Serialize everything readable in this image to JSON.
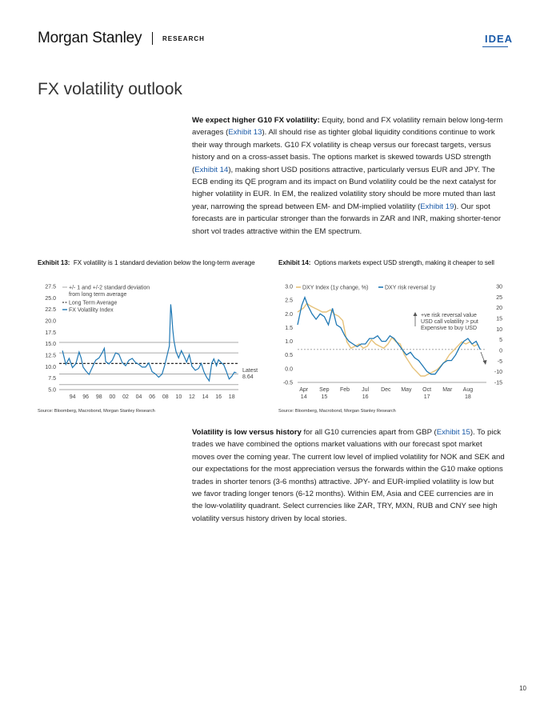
{
  "header": {
    "brand": "Morgan Stanley",
    "research": "RESEARCH",
    "tag": "IDEA"
  },
  "title": "FX volatility outlook",
  "para1": {
    "lead": "We expect higher G10 FX volatility:",
    "t1": " Equity, bond and FX volatility remain below long-term averages (",
    "link1": "Exhibit 13",
    "t2": "). All should rise as tighter global liquidity conditions continue to work their way through markets. G10 FX volatility is cheap versus our forecast targets, versus history and on a cross-asset basis. The options market is skewed towards USD strength (",
    "link2": "Exhibit 14",
    "t3": "), making short USD positions attractive, particularly versus EUR and JPY. The ECB ending its QE program and its impact on Bund volatility could be the next catalyst for higher volatility in EUR. In EM, the realized volatility story should be more muted than last year, narrowing the spread between EM- and DM-implied volatility (",
    "link3": "Exhibit 19",
    "t4": "). Our spot forecasts are in particular stronger than the forwards in ZAR and INR, making shorter-tenor short vol trades attractive within the EM spectrum."
  },
  "exhibit13": {
    "label": "Exhibit 13:",
    "title": "FX volatility is 1 standard deviation below the long-term average",
    "source": "Source: Bloomberg, Macrobond, Morgan Stanley Research"
  },
  "exhibit14": {
    "label": "Exhibit 14:",
    "title": "Options markets expect USD strength, making it cheaper to sell",
    "source": "Source: Bloomberg, Macrobond, Morgan Stanley Research"
  },
  "chart_data": [
    {
      "type": "line",
      "ylim": [
        5.0,
        27.5
      ],
      "y_ticks": [
        "27.5",
        "25.0",
        "22.5",
        "20.0",
        "17.5",
        "15.0",
        "12.5",
        "10.0",
        "7.5",
        "5.0"
      ],
      "x_ticks": [
        "94",
        "96",
        "98",
        "00",
        "02",
        "04",
        "06",
        "08",
        "10",
        "12",
        "14",
        "16",
        "18"
      ],
      "xlim": [
        1992.0,
        2019.0
      ],
      "legend": [
        "+/- 1 and +/-2 standard deviation from long term average",
        "Long Term Average",
        "FX Volatility Index"
      ],
      "legend_placement": "top-left",
      "annotation": {
        "text1": "Latest",
        "text2": "8.64"
      },
      "bands": [
        15.3,
        13.0,
        8.4,
        6.1
      ],
      "long_term_average": 10.7,
      "series": [
        {
          "name": "FX Volatility Index",
          "color": "#1f78b4",
          "x": [
            1992.5,
            1993.0,
            1993.5,
            1994.0,
            1994.5,
            1995.0,
            1995.3,
            1995.6,
            1996.0,
            1996.5,
            1997.0,
            1997.5,
            1998.0,
            1998.5,
            1998.8,
            1999.0,
            1999.5,
            2000.0,
            2000.5,
            2001.0,
            2001.5,
            2002.0,
            2002.5,
            2003.0,
            2003.5,
            2004.0,
            2004.5,
            2005.0,
            2005.5,
            2006.0,
            2006.5,
            2007.0,
            2007.5,
            2007.9,
            2008.3,
            2008.6,
            2008.8,
            2008.95,
            2009.1,
            2009.3,
            2009.6,
            2010.0,
            2010.4,
            2010.8,
            2011.2,
            2011.6,
            2012.0,
            2012.5,
            2013.0,
            2013.4,
            2013.8,
            2014.2,
            2014.6,
            2015.0,
            2015.3,
            2015.7,
            2016.0,
            2016.4,
            2016.8,
            2017.2,
            2017.6,
            2018.0,
            2018.4,
            2018.7
          ],
          "values": [
            13.5,
            10.5,
            11.8,
            9.8,
            10.6,
            13.2,
            11.9,
            9.9,
            9.1,
            8.3,
            9.9,
            11.4,
            11.9,
            13.1,
            14.0,
            11.1,
            10.6,
            11.4,
            13.0,
            12.7,
            10.9,
            10.2,
            11.4,
            11.8,
            10.9,
            10.5,
            9.9,
            9.9,
            10.8,
            8.9,
            8.4,
            7.7,
            8.4,
            10.3,
            12.7,
            14.5,
            23.6,
            21.5,
            18.2,
            15.6,
            13.3,
            11.9,
            13.5,
            12.3,
            11.0,
            12.6,
            10.1,
            9.2,
            9.6,
            10.7,
            8.9,
            7.7,
            6.9,
            10.8,
            11.7,
            10.2,
            11.5,
            10.9,
            10.4,
            8.9,
            7.3,
            7.9,
            8.8,
            8.64
          ]
        }
      ]
    },
    {
      "type": "line",
      "ylim_left": [
        -0.5,
        3.0
      ],
      "ylim_right": [
        -15,
        30
      ],
      "y_ticks_left": [
        "3.0",
        "2.5",
        "2.0",
        "1.5",
        "1.0",
        "0.5",
        "0.0",
        "-0.5"
      ],
      "y_ticks_right": [
        "30",
        "25",
        "20",
        "15",
        "10",
        "5",
        "0",
        "-5",
        "-10",
        "-15"
      ],
      "x_ticks": [
        {
          "m": "Apr",
          "y": "14"
        },
        {
          "m": "Sep",
          "y": "15"
        },
        {
          "m": "Feb",
          "y": ""
        },
        {
          "m": "Jul",
          "y": "16"
        },
        {
          "m": "Dec",
          "y": ""
        },
        {
          "m": "May",
          "y": ""
        },
        {
          "m": "Oct",
          "y": "17"
        },
        {
          "m": "Mar",
          "y": ""
        },
        {
          "m": "Aug",
          "y": "18"
        }
      ],
      "x_tick_pos": [
        0,
        1,
        2,
        3,
        4,
        5,
        6,
        7,
        8
      ],
      "xlim": [
        -0.3,
        8.9
      ],
      "legend": [
        "DXY Index (1y change, %)",
        "DXY risk reversal 1y"
      ],
      "legend_placement": "top-left",
      "annotation": {
        "line1": "+ve risk reversal value",
        "line2": "USD call volatility > put",
        "line3": "Expensive to buy USD"
      },
      "series": [
        {
          "name": "DXY Index (1y change, %)",
          "axis": "right",
          "color": "#e6c27a",
          "x": [
            -0.3,
            0.0,
            0.15,
            0.3,
            0.5,
            0.7,
            0.9,
            1.1,
            1.3,
            1.5,
            1.7,
            1.9,
            2.1,
            2.3,
            2.5,
            2.7,
            2.9,
            3.1,
            3.3,
            3.5,
            3.7,
            3.9,
            4.1,
            4.3,
            4.5,
            4.7,
            4.9,
            5.1,
            5.3,
            5.5,
            5.7,
            5.9,
            6.1,
            6.3,
            6.5,
            6.7,
            6.9,
            7.1,
            7.3,
            7.5,
            7.7,
            7.9,
            8.1,
            8.3,
            8.5
          ],
          "values": [
            18,
            20,
            22,
            21,
            20,
            19,
            18,
            18,
            19,
            17,
            16,
            14,
            4,
            1,
            2,
            3,
            1,
            2,
            5,
            3,
            2,
            1,
            3,
            6,
            4,
            3,
            -2,
            -5,
            -8,
            -10,
            -12,
            -12,
            -11,
            -10,
            -9,
            -7,
            -5,
            -2,
            0,
            2,
            4,
            3,
            4,
            2,
            3
          ]
        },
        {
          "name": "DXY risk reversal 1y",
          "axis": "left",
          "color": "#1f78b4",
          "x": [
            -0.3,
            -0.1,
            0.05,
            0.2,
            0.4,
            0.6,
            0.8,
            1.0,
            1.2,
            1.4,
            1.6,
            1.8,
            2.0,
            2.2,
            2.4,
            2.6,
            2.8,
            3.0,
            3.2,
            3.4,
            3.6,
            3.8,
            4.0,
            4.2,
            4.4,
            4.6,
            4.8,
            5.0,
            5.2,
            5.4,
            5.6,
            5.8,
            6.0,
            6.2,
            6.4,
            6.6,
            6.8,
            7.0,
            7.2,
            7.4,
            7.6,
            7.8,
            8.0,
            8.2,
            8.4,
            8.6
          ],
          "values": [
            1.6,
            2.3,
            2.6,
            2.3,
            2.0,
            1.8,
            2.0,
            1.9,
            1.6,
            2.2,
            1.6,
            1.5,
            1.2,
            1.0,
            0.9,
            0.8,
            0.9,
            0.9,
            1.1,
            1.1,
            1.2,
            1.0,
            1.0,
            1.2,
            1.1,
            0.9,
            0.7,
            0.5,
            0.6,
            0.4,
            0.3,
            0.1,
            -0.1,
            -0.2,
            -0.2,
            0.0,
            0.2,
            0.3,
            0.3,
            0.5,
            0.8,
            1.0,
            1.1,
            0.9,
            1.0,
            0.7
          ]
        }
      ],
      "reference_line_left": 0.7
    }
  ],
  "para2": {
    "lead": "Volatility is low versus history",
    "t1": " for all G10 currencies apart from GBP (",
    "link1": "Exhibit 15",
    "t2": "). To pick trades we have combined the options market valuations with our forecast spot market moves over the coming year. The current low level of implied volatility for NOK and SEK and our expectations for the most appreciation versus the forwards within the G10 make options trades in shorter tenors (3-6 months) attractive. JPY- and EUR-implied volatility is low but we favor trading longer tenors (6-12 months). Within EM, Asia and CEE currencies are in the low-volatility quadrant. Select currencies like ZAR, TRY, MXN, RUB and CNY see high volatility versus history driven by local stories."
  },
  "page_number": "10"
}
